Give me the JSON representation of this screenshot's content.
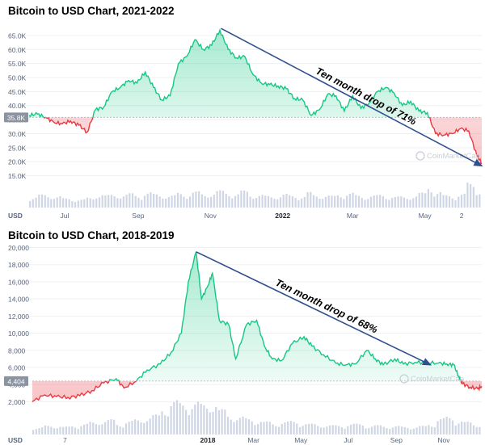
{
  "chart_data": [
    {
      "type": "line",
      "title": "Bitcoin to USD Chart, 2021-2022",
      "currency_label": "USD",
      "current_price_badge": "35.8K",
      "ylim": [
        12000,
        69000
      ],
      "y_ticks": [
        15000,
        20000,
        25000,
        30000,
        35000,
        40000,
        45000,
        50000,
        55000,
        60000,
        65000
      ],
      "y_tick_labels": [
        "15.0K",
        "20.0K",
        "25.0K",
        "30.0K",
        "35.0K",
        "40.0K",
        "45.0K",
        "50.0K",
        "55.0K",
        "60.0K",
        "65.0K"
      ],
      "x_range": [
        "2021-06-01",
        "2022-06-18"
      ],
      "x_ticks": [
        {
          "date": "2021-07-01",
          "label": "Jul"
        },
        {
          "date": "2021-09-01",
          "label": "Sep"
        },
        {
          "date": "2021-11-01",
          "label": "Nov"
        },
        {
          "date": "2022-01-01",
          "label": "2022"
        },
        {
          "date": "2022-03-01",
          "label": "Mar"
        },
        {
          "date": "2022-05-01",
          "label": "May"
        },
        {
          "date": "2022-06-01",
          "label": "2"
        }
      ],
      "reference_price": 35800,
      "series": [
        {
          "colors": {
            "above": "#16c784",
            "below": "#ea3943"
          },
          "x": [
            "2021-06-01",
            "2021-06-08",
            "2021-06-15",
            "2021-06-22",
            "2021-06-29",
            "2021-07-06",
            "2021-07-13",
            "2021-07-20",
            "2021-07-27",
            "2021-08-03",
            "2021-08-10",
            "2021-08-17",
            "2021-08-24",
            "2021-08-31",
            "2021-09-07",
            "2021-09-14",
            "2021-09-21",
            "2021-09-28",
            "2021-10-05",
            "2021-10-12",
            "2021-10-19",
            "2021-10-26",
            "2021-11-02",
            "2021-11-09",
            "2021-11-16",
            "2021-11-23",
            "2021-11-30",
            "2021-12-07",
            "2021-12-14",
            "2021-12-21",
            "2021-12-28",
            "2022-01-04",
            "2022-01-11",
            "2022-01-18",
            "2022-01-25",
            "2022-02-01",
            "2022-02-08",
            "2022-02-15",
            "2022-02-22",
            "2022-03-01",
            "2022-03-08",
            "2022-03-15",
            "2022-03-22",
            "2022-03-29",
            "2022-04-05",
            "2022-04-12",
            "2022-04-19",
            "2022-04-26",
            "2022-05-03",
            "2022-05-10",
            "2022-05-17",
            "2022-05-24",
            "2022-05-31",
            "2022-06-07",
            "2022-06-14",
            "2022-06-18"
          ],
          "y": [
            36500,
            37000,
            35800,
            34000,
            33500,
            34500,
            33000,
            30500,
            38500,
            39500,
            45000,
            46500,
            49000,
            48000,
            52000,
            46500,
            42000,
            43500,
            55000,
            57500,
            63500,
            60000,
            61500,
            66900,
            60000,
            57000,
            57500,
            51000,
            48000,
            47500,
            47000,
            46000,
            42500,
            42000,
            36500,
            38500,
            44000,
            43500,
            38000,
            43500,
            39000,
            41000,
            45000,
            46500,
            44500,
            40000,
            41500,
            38000,
            37500,
            30000,
            29500,
            30000,
            31800,
            31000,
            22000,
            19500
          ]
        }
      ],
      "volume": {
        "label": "volume bars",
        "relative_values": [
          0.35,
          0.42,
          0.4,
          0.38,
          0.3,
          0.28,
          0.27,
          0.32,
          0.45,
          0.4,
          0.42,
          0.44,
          0.46,
          0.4,
          0.5,
          0.44,
          0.42,
          0.4,
          0.48,
          0.46,
          0.52,
          0.45,
          0.48,
          0.55,
          0.5,
          0.46,
          0.55,
          0.44,
          0.42,
          0.38,
          0.4,
          0.44,
          0.4,
          0.38,
          0.5,
          0.42,
          0.4,
          0.38,
          0.44,
          0.48,
          0.4,
          0.38,
          0.4,
          0.42,
          0.38,
          0.36,
          0.35,
          0.4,
          0.48,
          0.7,
          0.52,
          0.4,
          0.38,
          0.45,
          0.8,
          0.6
        ]
      },
      "annotation": {
        "text": "Ten month drop of 71%",
        "from": {
          "date": "2021-11-10",
          "price": 67500
        },
        "to": {
          "date": "2022-06-18",
          "price": 18500
        }
      },
      "watermark": "CoinMarketCap"
    },
    {
      "type": "line",
      "title": "Bitcoin to USD Chart, 2018-2019",
      "currency_label": "USD",
      "current_price_badge": "4,404",
      "ylim": [
        1000,
        20800
      ],
      "y_ticks": [
        2000,
        4000,
        6000,
        8000,
        10000,
        12000,
        14000,
        16000,
        18000,
        20000
      ],
      "y_tick_labels": [
        "2,000",
        "4,000",
        "6,000",
        "8,000",
        "10,000",
        "12,000",
        "14,000",
        "16,000",
        "18,000",
        "20,000"
      ],
      "x_range": [
        "2017-05-20",
        "2018-12-20"
      ],
      "x_ticks": [
        {
          "date": "2017-07-01",
          "label": "7"
        },
        {
          "date": "2018-01-01",
          "label": "2018"
        },
        {
          "date": "2018-03-01",
          "label": "Mar"
        },
        {
          "date": "2018-05-01",
          "label": "May"
        },
        {
          "date": "2018-07-01",
          "label": "Jul"
        },
        {
          "date": "2018-09-01",
          "label": "Sep"
        },
        {
          "date": "2018-11-01",
          "label": "Nov"
        }
      ],
      "reference_price": 4404,
      "series": [
        {
          "colors": {
            "above": "#16c784",
            "below": "#ea3943"
          },
          "x": [
            "2017-05-20",
            "2017-06-05",
            "2017-06-20",
            "2017-07-05",
            "2017-07-20",
            "2017-08-05",
            "2017-08-20",
            "2017-09-05",
            "2017-09-15",
            "2017-10-01",
            "2017-10-15",
            "2017-11-01",
            "2017-11-15",
            "2017-11-28",
            "2017-12-07",
            "2017-12-17",
            "2017-12-24",
            "2018-01-01",
            "2018-01-07",
            "2018-01-16",
            "2018-01-28",
            "2018-02-06",
            "2018-02-20",
            "2018-03-05",
            "2018-03-15",
            "2018-03-25",
            "2018-04-06",
            "2018-04-20",
            "2018-05-05",
            "2018-05-15",
            "2018-05-30",
            "2018-06-15",
            "2018-06-28",
            "2018-07-10",
            "2018-07-25",
            "2018-08-05",
            "2018-08-15",
            "2018-08-30",
            "2018-09-10",
            "2018-09-25",
            "2018-10-10",
            "2018-10-25",
            "2018-11-05",
            "2018-11-14",
            "2018-11-20",
            "2018-11-25",
            "2018-12-05",
            "2018-12-15",
            "2018-12-20"
          ],
          "y": [
            2000,
            2800,
            2600,
            2500,
            2700,
            3300,
            4200,
            4700,
            3600,
            4400,
            5700,
            6400,
            7800,
            10000,
            16000,
            19500,
            14000,
            15500,
            17000,
            11500,
            11000,
            7000,
            11000,
            11500,
            8500,
            7000,
            6800,
            8800,
            9600,
            8500,
            7500,
            6500,
            6300,
            6400,
            8000,
            7000,
            6300,
            7000,
            6400,
            6600,
            6550,
            6500,
            6400,
            6300,
            5000,
            4100,
            3700,
            3500,
            3800
          ]
        }
      ],
      "volume": {
        "label": "volume bars",
        "relative_values": [
          0.2,
          0.25,
          0.25,
          0.22,
          0.25,
          0.3,
          0.35,
          0.4,
          0.42,
          0.3,
          0.38,
          0.42,
          0.5,
          0.55,
          0.75,
          0.95,
          0.88,
          0.92,
          0.85,
          0.9,
          0.7,
          0.55,
          0.5,
          0.45,
          0.4,
          0.36,
          0.32,
          0.36,
          0.38,
          0.32,
          0.3,
          0.28,
          0.26,
          0.26,
          0.3,
          0.3,
          0.25,
          0.26,
          0.24,
          0.24,
          0.22,
          0.22,
          0.24,
          0.3,
          0.45,
          0.5,
          0.4,
          0.35,
          0.3
        ]
      },
      "annotation": {
        "text": "Ten month drop of 68%",
        "from": {
          "date": "2017-12-17",
          "price": 19500
        },
        "to": {
          "date": "2018-10-15",
          "price": 6300
        }
      },
      "watermark": "CoinMarketCap"
    }
  ]
}
